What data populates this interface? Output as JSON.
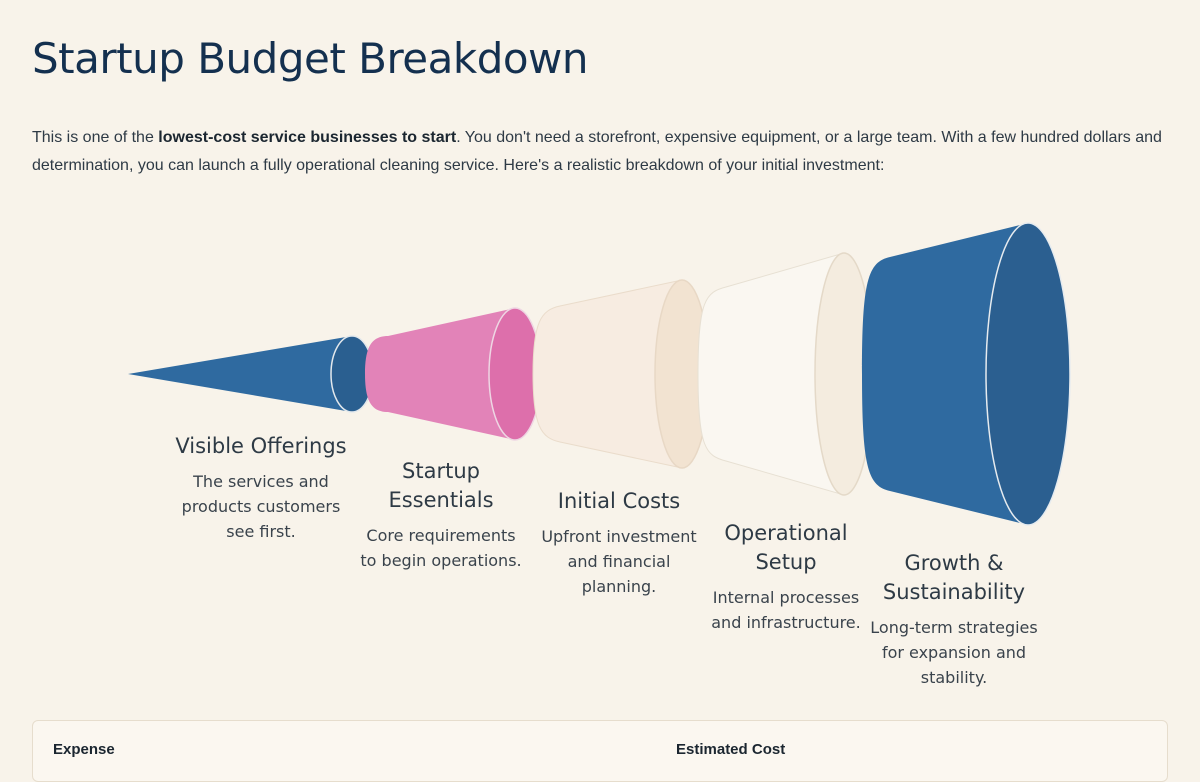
{
  "page": {
    "title": "Startup Budget Breakdown",
    "intro_before": "This is one of the ",
    "intro_bold": "lowest-cost service businesses to start",
    "intro_after": ". You don't need a storefront, expensive equipment, or a large team. With a few hundred dollars and determination, you can launch a fully operational cleaning service. Here's a realistic breakdown of your initial investment:"
  },
  "colors": {
    "background": "#f8f3ea",
    "title": "#14304f",
    "blue": "#2f6aa0",
    "pink": "#e283b8",
    "peach": "#f7ece1",
    "cream": "#faf7f1"
  },
  "stages": [
    {
      "title": "Visible Offerings",
      "description": "The services and products customers see first."
    },
    {
      "title": "Startup Essentials",
      "description": "Core requirements to begin operations."
    },
    {
      "title": "Initial Costs",
      "description": "Upfront investment and financial planning."
    },
    {
      "title": "Operational Setup",
      "description": "Internal processes and infrastructure."
    },
    {
      "title": "Growth & Sustainability",
      "description": "Long-term strategies for expansion and stability."
    }
  ],
  "table": {
    "headers": [
      "Expense",
      "Estimated Cost"
    ]
  }
}
